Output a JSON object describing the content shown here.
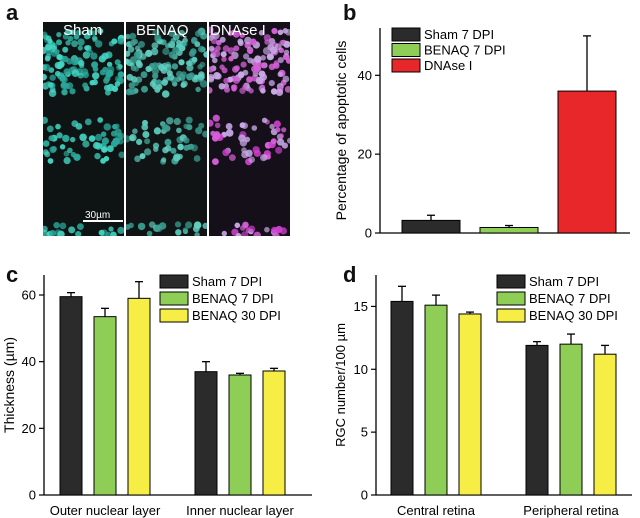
{
  "panels": {
    "a": {
      "letter": "a",
      "images": [
        "Sham",
        "BENAQ",
        "DNAse I"
      ],
      "scale_bar": "30µm"
    },
    "b": {
      "letter": "b"
    },
    "c": {
      "letter": "c"
    },
    "d": {
      "letter": "d"
    }
  },
  "chart_data": [
    {
      "panel": "b",
      "type": "bar",
      "ylabel": "Percentage of apoptotic cells",
      "ylim": [
        0,
        52
      ],
      "yticks": [
        0,
        20,
        40
      ],
      "legend": "top-left",
      "series": [
        {
          "name": "Sham 7 DPI",
          "values": [
            3.2
          ],
          "errors": [
            1.3
          ],
          "color": "#2b2b2b"
        },
        {
          "name": "BENAQ 7 DPI",
          "values": [
            1.4
          ],
          "errors": [
            0.5
          ],
          "color": "#8fce56"
        },
        {
          "name": "DNAse I",
          "values": [
            36
          ],
          "errors": [
            14
          ],
          "color": "#e8272a"
        }
      ]
    },
    {
      "panel": "c",
      "type": "bar",
      "categories": [
        "Outer nuclear layer",
        "Inner nuclear layer"
      ],
      "ylabel": "Thickness (µm)",
      "ylim": [
        0,
        66
      ],
      "yticks": [
        0,
        20,
        40,
        60
      ],
      "legend": "top-right",
      "series": [
        {
          "name": "Sham 7 DPI",
          "values": [
            59.5,
            37
          ],
          "errors": [
            1.2,
            3
          ],
          "color": "#2b2b2b"
        },
        {
          "name": "BENAQ 7 DPI",
          "values": [
            53.5,
            36
          ],
          "errors": [
            2.5,
            0.5
          ],
          "color": "#8fce56"
        },
        {
          "name": "BENAQ 30 DPI",
          "values": [
            59,
            37.2
          ],
          "errors": [
            5,
            0.8
          ],
          "color": "#f6ee45"
        }
      ]
    },
    {
      "panel": "d",
      "type": "bar",
      "categories": [
        "Central retina",
        "Peripheral retina"
      ],
      "ylabel": "RGC number/100 µm",
      "ylim": [
        0,
        17.5
      ],
      "yticks": [
        0,
        5,
        10,
        15
      ],
      "legend": "top-right",
      "series": [
        {
          "name": "Sham 7 DPI",
          "values": [
            15.4,
            11.9
          ],
          "errors": [
            1.2,
            0.3
          ],
          "color": "#2b2b2b"
        },
        {
          "name": "BENAQ 7 DPI",
          "values": [
            15.1,
            12
          ],
          "errors": [
            0.8,
            0.8
          ],
          "color": "#8fce56"
        },
        {
          "name": "BENAQ 30 DPI",
          "values": [
            14.4,
            11.2
          ],
          "errors": [
            0.15,
            0.7
          ],
          "color": "#f6ee45"
        }
      ]
    }
  ]
}
